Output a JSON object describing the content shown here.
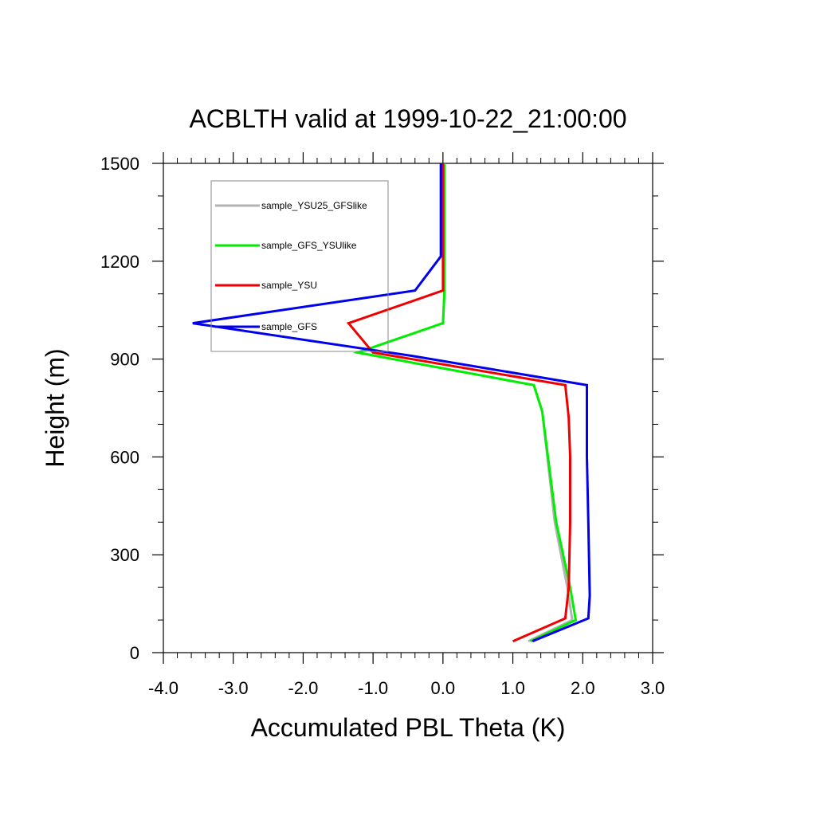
{
  "chart_data": {
    "type": "line",
    "title": "ACBLTH valid at 1999-10-22_21:00:00",
    "xlabel": "Accumulated PBL Theta (K)",
    "ylabel": "Height (m)",
    "xlim": [
      -4.0,
      3.0
    ],
    "ylim": [
      0,
      1500
    ],
    "xticks": [
      -4.0,
      -3.0,
      -2.0,
      -1.0,
      0.0,
      1.0,
      2.0,
      3.0
    ],
    "xtick_labels": [
      "-4.0",
      "-3.0",
      "-2.0",
      "-1.0",
      "0.0",
      "1.0",
      "2.0",
      "3.0"
    ],
    "yticks": [
      0,
      300,
      600,
      900,
      1200,
      1500
    ],
    "ytick_labels": [
      "0",
      "300",
      "600",
      "900",
      "1200",
      "1500"
    ],
    "grid": false,
    "legend_position": "top-left",
    "series": [
      {
        "name": "sample_YSU25_GFSlike",
        "color": "#b3b3b3",
        "points": [
          [
            1.22,
            35
          ],
          [
            1.85,
            100
          ],
          [
            1.78,
            200
          ],
          [
            1.6,
            400
          ],
          [
            1.42,
            740
          ],
          [
            1.3,
            820
          ],
          [
            -1.22,
            920
          ],
          [
            0.0,
            1010
          ],
          [
            0.02,
            1100
          ],
          [
            0.02,
            1200
          ],
          [
            0.02,
            1500
          ]
        ]
      },
      {
        "name": "sample_GFS_YSUlike",
        "color": "#00ee00",
        "points": [
          [
            1.25,
            35
          ],
          [
            1.9,
            100
          ],
          [
            1.82,
            200
          ],
          [
            1.62,
            400
          ],
          [
            1.42,
            740
          ],
          [
            1.3,
            820
          ],
          [
            -1.22,
            920
          ],
          [
            0.0,
            1010
          ],
          [
            0.02,
            1100
          ],
          [
            0.02,
            1200
          ],
          [
            0.02,
            1500
          ]
        ]
      },
      {
        "name": "sample_YSU",
        "color": "#ee0000",
        "points": [
          [
            1.0,
            35
          ],
          [
            1.75,
            105
          ],
          [
            1.8,
            200
          ],
          [
            1.82,
            400
          ],
          [
            1.82,
            600
          ],
          [
            1.8,
            720
          ],
          [
            1.75,
            820
          ],
          [
            -1.0,
            920
          ],
          [
            -1.35,
            1010
          ],
          [
            0.0,
            1110
          ],
          [
            0.0,
            1500
          ]
        ]
      },
      {
        "name": "sample_GFS",
        "color": "#0000ee",
        "points": [
          [
            1.28,
            35
          ],
          [
            2.08,
            105
          ],
          [
            2.1,
            175
          ],
          [
            2.08,
            400
          ],
          [
            2.06,
            600
          ],
          [
            2.06,
            820
          ],
          [
            -0.45,
            910
          ],
          [
            -3.58,
            1010
          ],
          [
            -0.4,
            1110
          ],
          [
            -0.03,
            1215
          ],
          [
            -0.03,
            1500
          ]
        ]
      }
    ]
  }
}
